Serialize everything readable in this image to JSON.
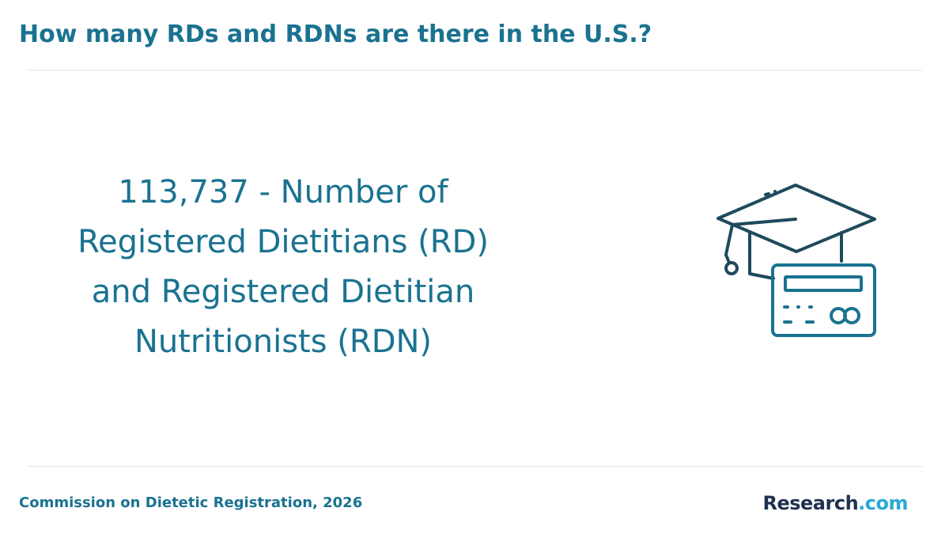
{
  "header": {
    "title": "How many RDs and RDNs are there in the U.S.?"
  },
  "main": {
    "statement": "113,737 - Number of Registered Dietitians (RD) and Registered Dietitian Nutritionists (RDN)",
    "icon": "graduation-cap-credential-card-icon"
  },
  "footer": {
    "source": "Commission on Dietetic Registration, 2026",
    "logo": {
      "brand": "Research",
      "tld": ".com"
    }
  },
  "colors": {
    "accent": "#1a7290",
    "icon_stroke_dark": "#1e4a5c",
    "icon_stroke_accent": "#1a7290",
    "logo_dark": "#1f3150",
    "logo_light": "#28a9d6"
  }
}
